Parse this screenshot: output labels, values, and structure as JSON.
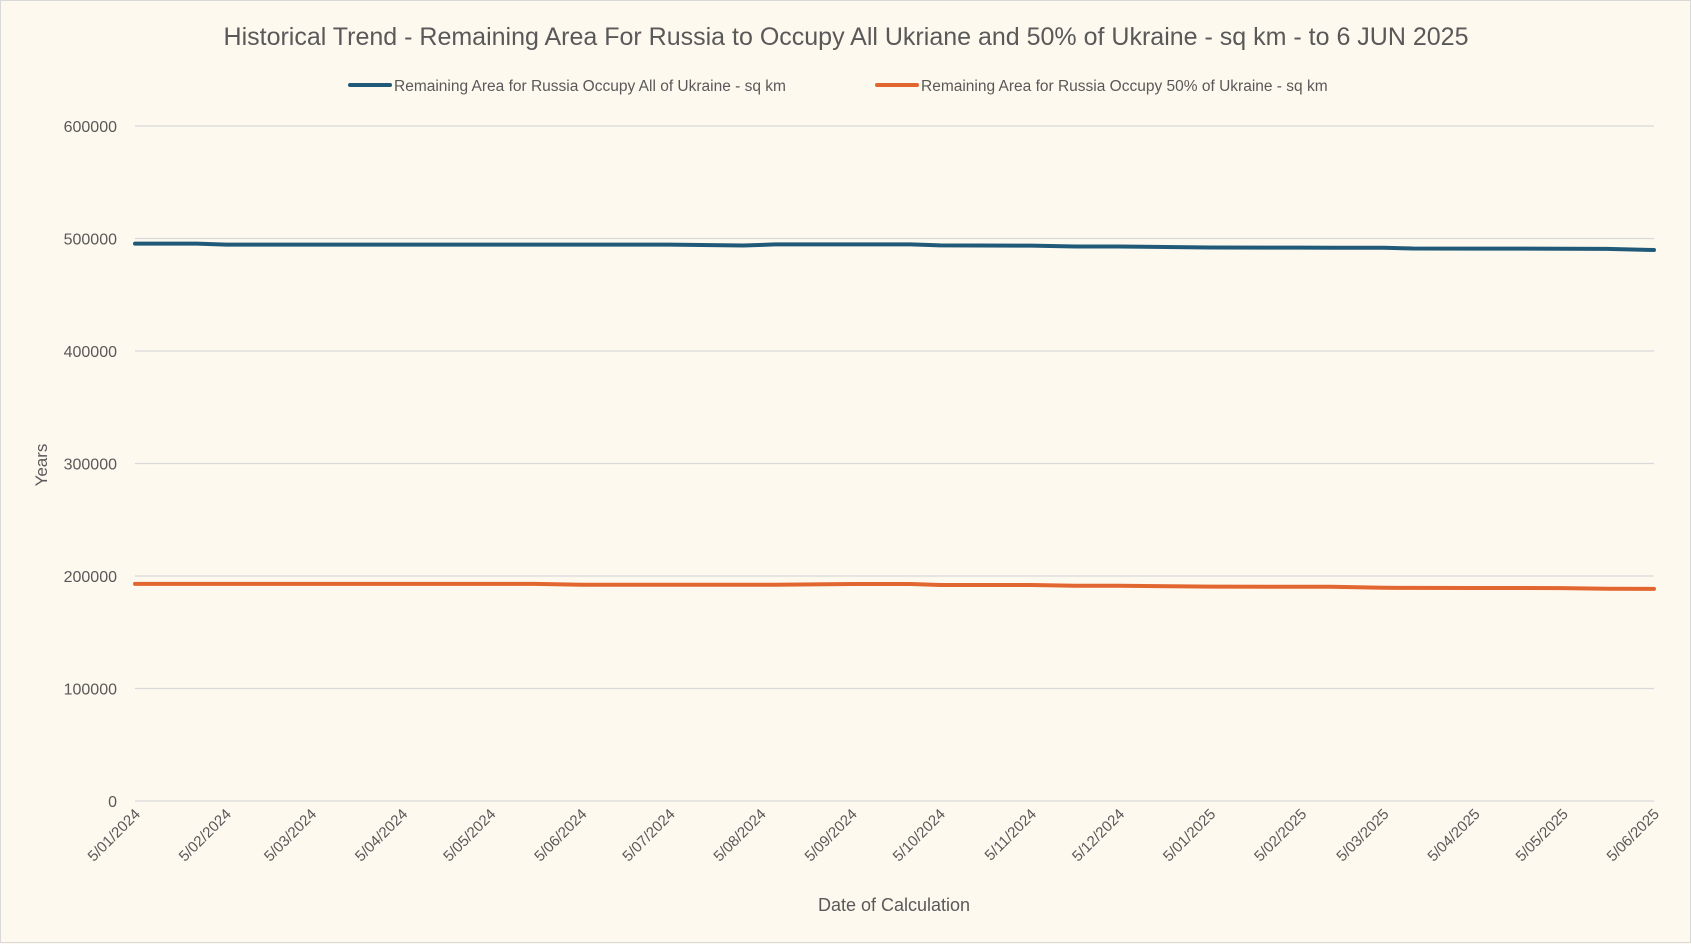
{
  "chart_data": {
    "type": "line",
    "title": "Historical Trend - Remaining Area For Russia to Occupy All Ukriane and 50% of Ukraine - sq km - to 6 JUN 2025",
    "xlabel": "Date of Calculation",
    "ylabel": "Years",
    "ylim": [
      0,
      600000
    ],
    "yticks": [
      0,
      100000,
      200000,
      300000,
      400000,
      500000,
      600000
    ],
    "xtick_labels": [
      "5/01/2024",
      "5/02/2024",
      "5/03/2024",
      "5/04/2024",
      "5/05/2024",
      "5/06/2024",
      "5/07/2024",
      "5/08/2024",
      "5/09/2024",
      "5/10/2024",
      "5/11/2024",
      "5/12/2024",
      "5/01/2025",
      "5/02/2025",
      "5/03/2025",
      "5/04/2025",
      "5/05/2025",
      "5/06/2025"
    ],
    "x": [
      "2024-01-05",
      "2024-01-26",
      "2024-02-05",
      "2024-03-05",
      "2024-04-05",
      "2024-05-05",
      "2024-05-20",
      "2024-06-05",
      "2024-07-05",
      "2024-07-30",
      "2024-08-10",
      "2024-09-05",
      "2024-09-25",
      "2024-10-05",
      "2024-11-05",
      "2024-11-20",
      "2024-12-05",
      "2025-01-05",
      "2025-02-05",
      "2025-02-15",
      "2025-03-05",
      "2025-03-15",
      "2025-04-05",
      "2025-05-05",
      "2025-05-20",
      "2025-06-05"
    ],
    "series": [
      {
        "name": "Remaining Area for Russia Occupy All of Ukraine - sq km",
        "color": "#215a78",
        "values": [
          495500,
          495500,
          494600,
          494600,
          494600,
          494600,
          494600,
          494600,
          494600,
          493800,
          494800,
          494800,
          494800,
          493900,
          493700,
          492900,
          492900,
          492000,
          491900,
          491800,
          491700,
          491100,
          491000,
          490900,
          490800,
          489800
        ]
      },
      {
        "name": "Remaining Area for Russia Occupy 50% of Ukraine - sq km",
        "color": "#e2662f",
        "values": [
          193000,
          193000,
          193000,
          193000,
          193000,
          193000,
          193000,
          192300,
          192200,
          192200,
          192200,
          192900,
          192900,
          192000,
          192000,
          191300,
          191300,
          190600,
          190400,
          190400,
          189500,
          189400,
          189300,
          189200,
          188600,
          188500
        ]
      }
    ],
    "grid": true,
    "legend": "top"
  }
}
